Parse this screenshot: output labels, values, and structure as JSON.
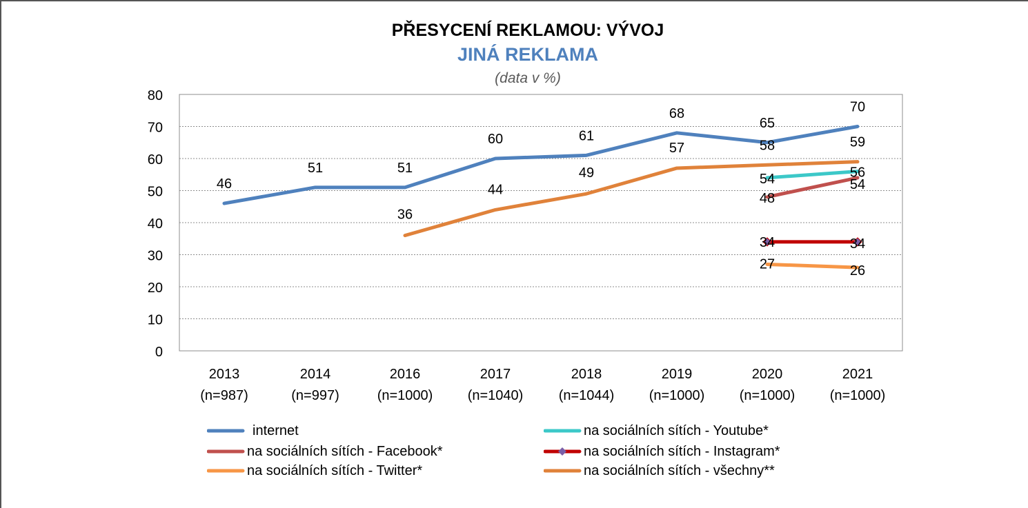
{
  "chart_data": {
    "type": "line",
    "title": "PŘESYCENÍ REKLAMOU: VÝVOJ",
    "subtitle": "JINÁ REKLAMA",
    "note": "(data v %)",
    "categories": [
      "2013",
      "2014",
      "2016",
      "2017",
      "2018",
      "2019",
      "2020",
      "2021"
    ],
    "category_notes": [
      "(n=987)",
      "(n=997)",
      "(n=1000)",
      "(n=1040)",
      "(n=1044)",
      "(n=1000)",
      "(n=1000)",
      "(n=1000)"
    ],
    "ylim": [
      0,
      80
    ],
    "yticks": [
      "0",
      "10",
      "20",
      "30",
      "40",
      "50",
      "60",
      "70",
      "80"
    ],
    "grid": true,
    "legend_position": "bottom",
    "series": [
      {
        "name": "internet",
        "color": "#4f81bd",
        "values": [
          46,
          51,
          51,
          60,
          61,
          68,
          65,
          70
        ],
        "labels": [
          "46",
          "51",
          "51",
          "60",
          "61",
          "68",
          "65",
          "70"
        ]
      },
      {
        "name": "na sociálních sítích - Youtube*",
        "color": "#3cc8c8",
        "values": [
          null,
          null,
          null,
          null,
          null,
          null,
          54,
          56
        ],
        "labels": [
          "",
          "",
          "",
          "",
          "",
          "",
          "54",
          "56"
        ]
      },
      {
        "name": "na sociálních sítích - Facebook*",
        "color": "#c0504d",
        "values": [
          null,
          null,
          null,
          null,
          null,
          null,
          48,
          54
        ],
        "labels": [
          "",
          "",
          "",
          "",
          "",
          "",
          "48",
          "54"
        ]
      },
      {
        "name": "na sociálních sítích - Instagram*",
        "color": "#c00000",
        "marker": "diamond",
        "values": [
          null,
          null,
          null,
          null,
          null,
          null,
          34,
          34
        ],
        "labels": [
          "",
          "",
          "",
          "",
          "",
          "",
          "34",
          "34"
        ]
      },
      {
        "name": "na sociálních sítích - Twitter*",
        "color": "#f79646",
        "values": [
          null,
          null,
          null,
          null,
          null,
          null,
          27,
          26
        ],
        "labels": [
          "",
          "",
          "",
          "",
          "",
          "",
          "27",
          "26"
        ]
      },
      {
        "name": "na sociálních sítích - všechny**",
        "color": "#e0823a",
        "values": [
          null,
          null,
          36,
          44,
          49,
          57,
          58,
          59
        ],
        "labels": [
          "",
          "",
          "36",
          "44",
          "49",
          "57",
          "58",
          "59"
        ]
      }
    ]
  }
}
